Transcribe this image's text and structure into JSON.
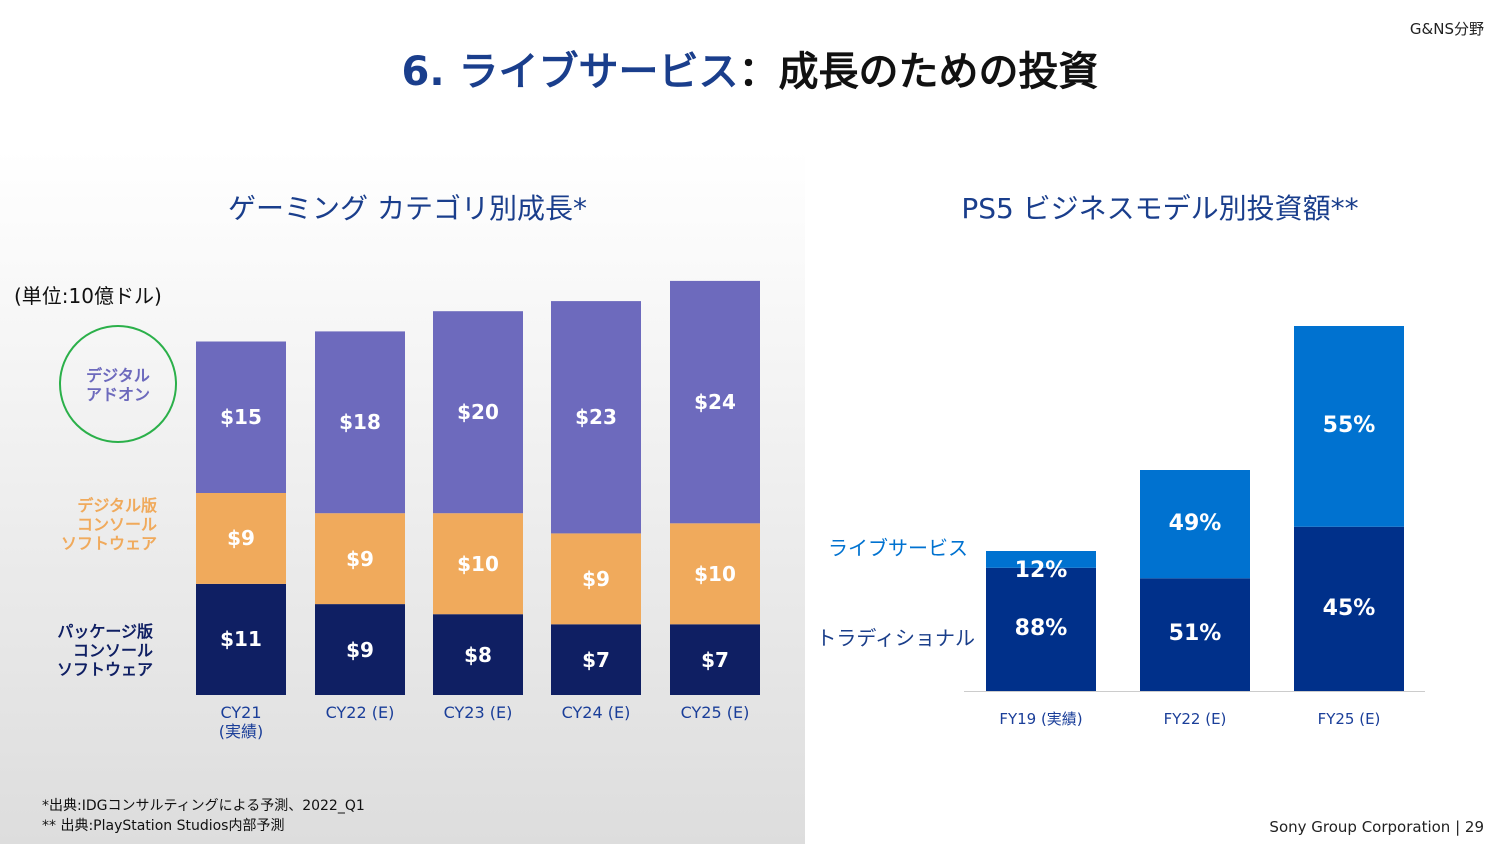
{
  "section_tag": "G&NS分野",
  "title": {
    "lead": "6. ライブサービス",
    "rest": "：成長のための投資"
  },
  "chart_data": [
    {
      "type": "stacked_bar",
      "title": "ゲーミング カテゴリ別成長*",
      "y_label": "(単位:10億ドル)",
      "categories": [
        "CY21\n(実績)",
        "CY22 (E)",
        "CY23 (E)",
        "CY24 (E)",
        "CY25 (E)"
      ],
      "series": [
        {
          "name": "パッケージ版\nコンソール\nソフトウェア",
          "color": "#0f1f63",
          "values": [
            11,
            9,
            8,
            7,
            7
          ],
          "value_labels": [
            "$11",
            "$9",
            "$8",
            "$7",
            "$7"
          ]
        },
        {
          "name": "デジタル版\nコンソール\nソフトウェア",
          "color": "#f0aa5c",
          "values": [
            9,
            9,
            10,
            9,
            10
          ],
          "value_labels": [
            "$9",
            "$9",
            "$10",
            "$9",
            "$10"
          ]
        },
        {
          "name": "デジタル\nアドオン",
          "color": "#6d6abd",
          "values": [
            15,
            18,
            20,
            23,
            24
          ],
          "value_labels": [
            "$15",
            "$18",
            "$20",
            "$23",
            "$24"
          ]
        }
      ]
    },
    {
      "type": "stacked_percent_bar",
      "title": "PS5 ビジネスモデル別投資額**",
      "categories": [
        "FY19 (実績)",
        "FY22 (E)",
        "FY25 (E)"
      ],
      "series": [
        {
          "name": "トラディショナル",
          "color": "#00308a",
          "values": [
            88,
            51,
            45
          ],
          "value_labels": [
            "88%",
            "51%",
            "45%"
          ]
        },
        {
          "name": "ライブサービス",
          "color": "#0072d0",
          "values": [
            12,
            49,
            55
          ],
          "value_labels": [
            "12%",
            "49%",
            "55%"
          ]
        }
      ]
    }
  ],
  "footnotes": [
    "*出典:IDGコンサルティングによる予測、2022_Q1",
    "** 出典:PlayStation Studios内部予測"
  ],
  "footer": "Sony Group Corporation | 29"
}
